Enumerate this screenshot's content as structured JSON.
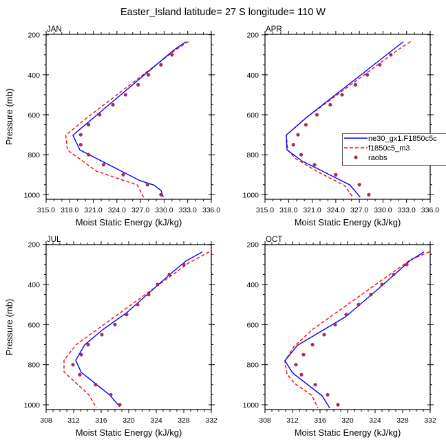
{
  "chart_data": {
    "type": "line",
    "title": "Easter_Island  latitude= 27 S longitude= 110 W",
    "legend": {
      "placement": "right-middle",
      "entries": [
        {
          "name": "ne30_gx1.F1850c5c",
          "style": "solid",
          "color": "#0000ff"
        },
        {
          "name": "f1850c5_m3",
          "style": "dashed",
          "color": "#ff0000"
        },
        {
          "name": "raobs",
          "style": "markers",
          "color": "#a0305a"
        }
      ]
    },
    "colors": {
      "model1": "#0000ff",
      "model2": "#ff0000",
      "obs": "#a0305a",
      "axis": "#000000"
    },
    "panels": [
      {
        "label": "JAN",
        "xlabel": "Moist Static Energy (kJ/kg)",
        "ylabel": "Pressure (mb)",
        "xlim": [
          315,
          336
        ],
        "ylim": [
          1023,
          200
        ],
        "xticks": [
          315,
          318,
          321,
          324,
          327,
          330,
          333,
          336
        ],
        "xtick_labels": [
          "315.0",
          "318.0",
          "321.0",
          "324.0",
          "327.0",
          "330.0",
          "333.0",
          "336.0"
        ],
        "xminor": 1,
        "yticks": [
          200,
          400,
          600,
          800,
          1000
        ],
        "yminor": 50,
        "show_ylabel": true,
        "show_legend": false,
        "series": [
          {
            "name": "ne30_gx1.F1850c5c",
            "p": [
              234,
              274,
              702,
              776,
              929,
              952,
              979,
              1012
            ],
            "mse": [
              332.8,
              331.3,
              318.4,
              319.3,
              326.9,
              328.7,
              329.6,
              329.9
            ]
          },
          {
            "name": "f1850c5_m3",
            "p": [
              234,
              274,
              624,
              702,
              776,
              882,
              952,
              1013
            ],
            "mse": [
              333.1,
              331.5,
              319.9,
              317.5,
              317.7,
              321.4,
              326.6,
              327.4
            ]
          },
          {
            "name": "raobs",
            "p": [
              300,
              350,
              400,
              450,
              500,
              550,
              600,
              650,
              700,
              750,
              800,
              850,
              900,
              950,
              1000
            ],
            "mse": [
              331.0,
              329.6,
              328.0,
              326.7,
              325.1,
              323.5,
              321.8,
              320.4,
              319.4,
              319.4,
              320.4,
              322.3,
              324.8,
              327.9,
              329.6
            ]
          }
        ]
      },
      {
        "label": "APR",
        "xlabel": "Moist Static Energy (kJ/kg)",
        "ylabel": "",
        "xlim": [
          315,
          336
        ],
        "ylim": [
          1023,
          200
        ],
        "xticks": [
          315,
          318,
          321,
          324,
          327,
          330,
          333,
          336
        ],
        "xtick_labels": [
          "315.0",
          "318.0",
          "321.0",
          "324.0",
          "327.0",
          "330.0",
          "333.0",
          "336.0"
        ],
        "xminor": 1,
        "yticks": [
          200,
          400,
          600,
          800,
          1000
        ],
        "yminor": 50,
        "show_ylabel": false,
        "show_legend": true,
        "series": [
          {
            "name": "ne30_gx1.F1850c5c",
            "p": [
              234,
              280,
              616,
              702,
              776,
              831,
              951,
              1012
            ],
            "mse": [
              332.6,
              331.1,
              320.2,
              317.7,
              317.8,
              319.7,
              325.8,
              327.1
            ]
          },
          {
            "name": "f1850c5_m3",
            "p": [
              234,
              278,
              616,
              702,
              776,
              817,
              883,
              954,
              1013
            ],
            "mse": [
              333.5,
              331.8,
              320.2,
              317.7,
              317.9,
              318.8,
              321.6,
              325.1,
              326.2
            ]
          },
          {
            "name": "raobs",
            "p": [
              300,
              350,
              400,
              450,
              500,
              550,
              600,
              650,
              700,
              750,
              800,
              850,
              900,
              950,
              1000
            ],
            "mse": [
              331.0,
              329.6,
              328.0,
              326.5,
              324.8,
              323.3,
              321.6,
              320.2,
              319.2,
              318.6,
              319.6,
              321.3,
              324.0,
              327.0,
              328.2
            ]
          }
        ]
      },
      {
        "label": "JUL",
        "xlabel": "Moist Static Energy (kJ/kg)",
        "ylabel": "Pressure (mb)",
        "xlim": [
          308,
          332
        ],
        "ylim": [
          1023,
          200
        ],
        "xticks": [
          308,
          312,
          316,
          320,
          324,
          328,
          332
        ],
        "xtick_labels": [
          "308",
          "312",
          "316",
          "320",
          "324",
          "328",
          "332"
        ],
        "xminor": 1,
        "yticks": [
          200,
          400,
          600,
          800,
          1000
        ],
        "yminor": 50,
        "show_ylabel": true,
        "show_legend": false,
        "series": [
          {
            "name": "ne30_gx1.F1850c5c",
            "p": [
              237,
              283,
              340,
              541,
              626,
              701,
              778,
              838,
              950,
              1010
            ],
            "mse": [
              330.7,
              328.3,
              326.3,
              319.7,
              316.2,
              313.6,
              312.3,
              313.1,
              317.2,
              318.7
            ]
          },
          {
            "name": "f1850c5_m3",
            "p": [
              237,
              293,
              702,
              778,
              836,
              950,
              1015
            ],
            "mse": [
              331.7,
              328.7,
              312.3,
              310.6,
              310.6,
              314.2,
              315.3
            ]
          },
          {
            "name": "raobs",
            "p": [
              300,
              350,
              400,
              450,
              500,
              550,
              600,
              650,
              700,
              750,
              800,
              850,
              900,
              950,
              1000
            ],
            "mse": [
              328.0,
              325.9,
              324.2,
              322.9,
              321.3,
              319.7,
              318.0,
              316.1,
              314.1,
              313.1,
              311.9,
              312.9,
              315.2,
              317.4,
              318.7
            ]
          }
        ]
      },
      {
        "label": "OCT",
        "xlabel": "Moist Static Energy (kJ/kg)",
        "ylabel": "",
        "xlim": [
          308,
          332
        ],
        "ylim": [
          1023,
          200
        ],
        "xticks": [
          308,
          312,
          316,
          320,
          324,
          328,
          332
        ],
        "xtick_labels": [
          "308",
          "312",
          "316",
          "320",
          "324",
          "328",
          "332"
        ],
        "xminor": 1,
        "yticks": [
          200,
          400,
          600,
          800,
          1000
        ],
        "yminor": 50,
        "show_ylabel": false,
        "show_legend": false,
        "series": [
          {
            "name": "ne30_gx1.F1850c5c",
            "p": [
              237,
              283,
              409,
              561,
              704,
              780,
              841,
              955,
              1016
            ],
            "mse": [
              331.1,
              329.0,
              324.9,
              319.7,
              312.7,
              310.9,
              312.0,
              316.3,
              317.4
            ]
          },
          {
            "name": "f1850c5_m3",
            "p": [
              237,
              275,
              622,
              710,
              783,
              847,
              893,
              953,
              1016
            ],
            "mse": [
              331.9,
              329.2,
              315.0,
              312.2,
              310.9,
              311.2,
              312.3,
              314.8,
              315.7
            ]
          },
          {
            "name": "raobs",
            "p": [
              300,
              350,
              400,
              450,
              500,
              550,
              600,
              650,
              700,
              750,
              800,
              850,
              900,
              950,
              1000
            ],
            "mse": [
              328.6,
              326.7,
              325.0,
              323.4,
              321.6,
              319.8,
              318.2,
              316.6,
              314.9,
              313.6,
              312.5,
              313.3,
              315.3,
              317.1,
              318.6
            ]
          }
        ]
      }
    ]
  }
}
